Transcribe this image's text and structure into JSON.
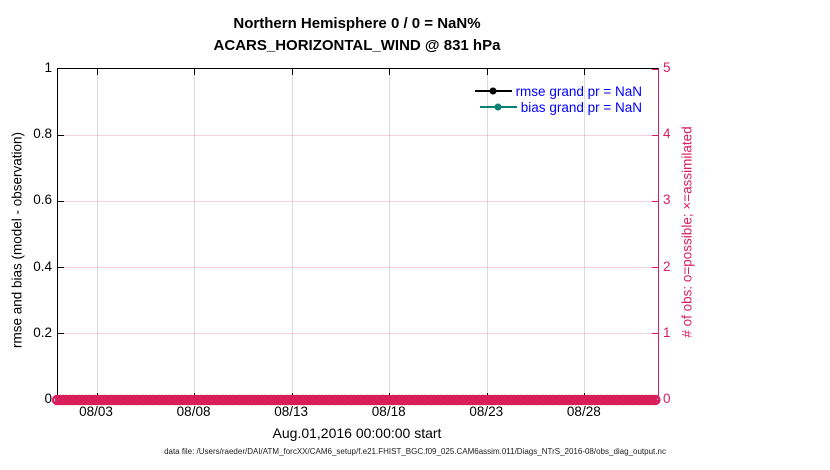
{
  "title": {
    "line1": "Northern Hemisphere 0 / 0 = NaN%",
    "line2": "ACARS_HORIZONTAL_WIND @ 831 hPa"
  },
  "colors": {
    "accent_obs_count": "#d81e5b",
    "rmse_line": "#000000",
    "bias_line": "#0c8276",
    "legend_text": "#0000ff",
    "grid_vertical": "rgba(0,0,0,0.14)",
    "grid_horizontal": "rgba(216,30,91,0.20)"
  },
  "legend": [
    {
      "label": "rmse grand pr = NaN",
      "color": "#000000"
    },
    {
      "label": "bias grand pr = NaN",
      "color": "#0c8276"
    }
  ],
  "chart_data": {
    "type": "line",
    "title": "Northern Hemisphere 0 / 0 = NaN%",
    "subtitle": "ACARS_HORIZONTAL_WIND @ 831 hPa",
    "xlabel": "Aug.01,2016 00:00:00 start",
    "ylabel_left": "rmse and bias (model - observation)",
    "ylabel_right": "# of obs: o=possible; ×=assimilated",
    "grid": true,
    "legend_position": "upper-right-inside",
    "x_axis": {
      "start_day": 1,
      "end_day": 31.75,
      "tick_days": [
        3,
        8,
        13,
        18,
        23,
        28
      ],
      "tick_labels": [
        "08/03",
        "08/08",
        "08/13",
        "08/18",
        "08/23",
        "08/28"
      ]
    },
    "y_left": {
      "min": 0,
      "max": 1,
      "ticks": [
        0,
        0.2,
        0.4,
        0.6,
        0.8,
        1
      ],
      "tick_labels": [
        "0",
        "0.2",
        "0.4",
        "0.6",
        "0.8",
        "1"
      ]
    },
    "y_right": {
      "min": 0,
      "max": 5,
      "ticks": [
        0,
        1,
        2,
        3,
        4,
        5
      ],
      "tick_labels": [
        "0",
        "1",
        "2",
        "3",
        "4",
        "5"
      ]
    },
    "series": [
      {
        "name": "rmse",
        "legend_label": "rmse grand pr = NaN",
        "grand_value": "NaN",
        "values": []
      },
      {
        "name": "bias",
        "legend_label": "bias grand pr = NaN",
        "grand_value": "NaN",
        "values": []
      }
    ],
    "obs_counts": {
      "possible_total": 0,
      "assimilated_total": 0,
      "marker_value": 0,
      "note": "o=possible and ×=assimilated markers all plotted at 0 across the full time axis"
    }
  },
  "footer": {
    "data_file": "data file: /Users/raeder/DAI/ATM_forcXX/CAM6_setup/f.e21.FHIST_BGC.f09_025.CAM6assim.011/Diags_NTrS_2016-08/obs_diag_output.nc"
  }
}
